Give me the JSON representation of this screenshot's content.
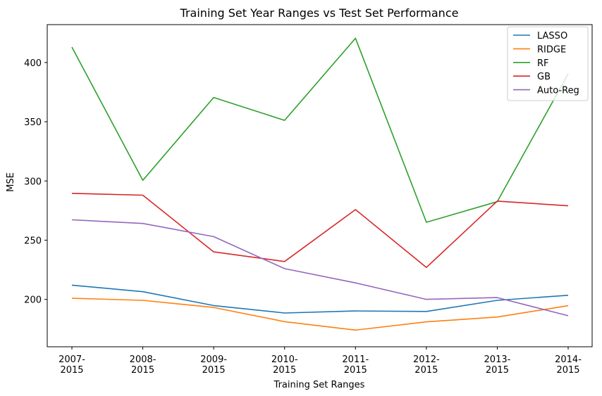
{
  "chart_data": {
    "type": "line",
    "title": "Training Set Year Ranges vs Test Set Performance",
    "xlabel": "Training Set Ranges",
    "ylabel": "MSE",
    "categories": [
      [
        "2007-",
        "2015"
      ],
      [
        "2008-",
        "2015"
      ],
      [
        "2009-",
        "2015"
      ],
      [
        "2010-",
        "2015"
      ],
      [
        "2011-",
        "2015"
      ],
      [
        "2012-",
        "2015"
      ],
      [
        "2013-",
        "2015"
      ],
      [
        "2014-",
        "2015"
      ]
    ],
    "yticks": [
      "200",
      "250",
      "300",
      "350",
      "400"
    ],
    "ylim": [
      160,
      432
    ],
    "grid": false,
    "legend_position": "top-right",
    "series": [
      {
        "name": "LASSO",
        "color": "#1f77b4",
        "values": [
          212,
          206.5,
          194.8,
          188.5,
          190.2,
          189.8,
          199.2,
          203.5
        ]
      },
      {
        "name": "RIDGE",
        "color": "#ff7f0e",
        "values": [
          201,
          199.2,
          193.2,
          181.2,
          174.1,
          181.0,
          185.1,
          194.7
        ]
      },
      {
        "name": "RF",
        "color": "#2ca02c",
        "values": [
          413,
          300.5,
          370.5,
          351.2,
          420.5,
          265.1,
          282.5,
          390.5
        ]
      },
      {
        "name": "GB",
        "color": "#d62728",
        "values": [
          289.5,
          288.0,
          240.1,
          232.0,
          275.8,
          227.0,
          283.0,
          279.0
        ]
      },
      {
        "name": "Auto-Reg",
        "color": "#9467bd",
        "values": [
          267.2,
          264.1,
          253.0,
          226.0,
          213.9,
          200.0,
          201.5,
          186.2
        ]
      }
    ]
  }
}
